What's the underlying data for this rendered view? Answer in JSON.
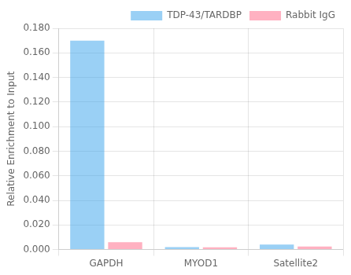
{
  "chart_data": {
    "type": "bar",
    "categories": [
      "GAPDH",
      "MYOD1",
      "Satellite2"
    ],
    "series": [
      {
        "name": "TDP-43/TARDBP",
        "values": [
          0.17,
          0.002,
          0.004
        ]
      },
      {
        "name": "Rabbit IgG",
        "values": [
          0.006,
          0.0018,
          0.0025
        ]
      }
    ],
    "ylabel": "Relative Enrichment to Input",
    "ylim": [
      0,
      0.18
    ],
    "yticks": [
      {
        "value": 0,
        "label": "0.000"
      },
      {
        "value": 0.02,
        "label": "0.020"
      },
      {
        "value": 0.04,
        "label": "0.040"
      },
      {
        "value": 0.06,
        "label": "0.060"
      },
      {
        "value": 0.08,
        "label": "0.080"
      },
      {
        "value": 0.1,
        "label": "0.100"
      },
      {
        "value": 0.12,
        "label": "0.120"
      },
      {
        "value": 0.14,
        "label": "0.140"
      },
      {
        "value": 0.16,
        "label": "0.160"
      },
      {
        "value": 0.18,
        "label": "0.180"
      }
    ],
    "grid": true,
    "legend": "upper right"
  }
}
